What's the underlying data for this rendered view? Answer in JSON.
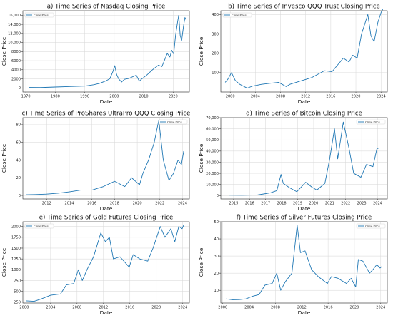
{
  "chart_data": [
    {
      "type": "line",
      "title": "a) Time Series of Nasdaq Closing Price",
      "xlabel": "Date",
      "ylabel": "Close Price",
      "legend": [
        "Close Price"
      ],
      "legend_position": "top-left",
      "grid": true,
      "xlim": [
        1969,
        2025.5
      ],
      "ylim": [
        -900,
        17000
      ],
      "x_ticks": [
        1970,
        1980,
        1990,
        2000,
        2010,
        2020
      ],
      "x_tick_labels": [
        "1970",
        "1980",
        "1990",
        "2000",
        "2010",
        "2020"
      ],
      "y_ticks": [
        0,
        2000,
        4000,
        6000,
        8000,
        10000,
        12000,
        14000,
        16000
      ],
      "y_tick_labels": [
        "0",
        "2000",
        "4000",
        "6000",
        "8000",
        "10,000",
        "12,000",
        "14,000",
        "16,000"
      ],
      "series": [
        {
          "name": "Close Price",
          "color": "#1f77b4",
          "x": [
            1971,
            1975,
            1980,
            1985,
            1990,
            1993,
            1995,
            1997,
            1998.5,
            1999.5,
            2000.2,
            2000.8,
            2001.5,
            2002.5,
            2003.5,
            2005,
            2007.5,
            2008.5,
            2009.2,
            2011,
            2013,
            2015,
            2016.2,
            2018,
            2018.9,
            2019.5,
            2020.2,
            2020.8,
            2021.5,
            2021.9,
            2022.4,
            2022.9,
            2023.5,
            2024,
            2024.4
          ],
          "y": [
            100,
            80,
            200,
            300,
            400,
            700,
            1000,
            1500,
            2000,
            3500,
            4900,
            3000,
            2000,
            1300,
            1900,
            2100,
            2800,
            1500,
            1900,
            2800,
            4000,
            5000,
            4700,
            7600,
            6800,
            8300,
            7500,
            11500,
            14500,
            16000,
            11500,
            10500,
            13500,
            15500,
            15000
          ]
        }
      ]
    },
    {
      "type": "line",
      "title": "b) Time Series of Invesco QQQ Trust  Closing Price",
      "xlabel": "Date",
      "ylabel": "Close Price",
      "legend": [
        "Close Price"
      ],
      "legend_position": "top-left",
      "grid": true,
      "xlim": [
        1998.5,
        2025
      ],
      "ylim": [
        0,
        420
      ],
      "x_ticks": [
        2000,
        2004,
        2008,
        2012,
        2016,
        2020,
        2024
      ],
      "x_tick_labels": [
        "2000",
        "2004",
        "2008",
        "2012",
        "2016",
        "2020",
        "2024"
      ],
      "y_ticks": [
        100,
        200,
        300,
        400
      ],
      "y_tick_labels": [
        "100",
        "200",
        "300",
        "400"
      ],
      "series": [
        {
          "name": "Close Price",
          "color": "#1f77b4",
          "x": [
            1999.2,
            1999.6,
            2000.2,
            2000.8,
            2001.5,
            2002.7,
            2003.5,
            2005,
            2007.7,
            2008.9,
            2009.5,
            2011,
            2013,
            2015,
            2016.2,
            2018,
            2018.9,
            2019.5,
            2020.2,
            2020.9,
            2021.5,
            2021.9,
            2022.4,
            2022.9,
            2023.5,
            2024,
            2024.3
          ],
          "y": [
            50,
            65,
            100,
            60,
            40,
            20,
            30,
            40,
            50,
            28,
            40,
            55,
            75,
            110,
            105,
            175,
            155,
            190,
            175,
            300,
            360,
            400,
            290,
            260,
            360,
            410,
            430
          ]
        }
      ]
    },
    {
      "type": "line",
      "title": "c) Time Series of ProShares UltraPro QQQ Closing Price",
      "xlabel": "Date",
      "ylabel": "Close Price",
      "legend": [
        "Close Price"
      ],
      "legend_position": "top-right",
      "grid": true,
      "xlim": [
        2009.9,
        2024.6
      ],
      "ylim": [
        -4,
        88
      ],
      "x_ticks": [
        2012,
        2014,
        2016,
        2018,
        2020,
        2022,
        2024
      ],
      "x_tick_labels": [
        "2012",
        "2014",
        "2016",
        "2018",
        "2020",
        "2022",
        "2024"
      ],
      "y_ticks": [
        0,
        20,
        40,
        60,
        80
      ],
      "y_tick_labels": [
        "0",
        "20",
        "40",
        "60",
        "80"
      ],
      "series": [
        {
          "name": "Close Price",
          "color": "#1f77b4",
          "x": [
            2010.2,
            2011,
            2012,
            2013,
            2014,
            2015,
            2016,
            2017,
            2018,
            2018.9,
            2019.5,
            2020.2,
            2020.5,
            2021,
            2021.5,
            2021.9,
            2022.3,
            2022.8,
            2023.2,
            2023.6,
            2023.9,
            2024.1
          ],
          "y": [
            0.8,
            1,
            1.5,
            2.5,
            4,
            6,
            6,
            10,
            16,
            10,
            20,
            12,
            25,
            40,
            60,
            85,
            40,
            17,
            25,
            40,
            35,
            50
          ]
        }
      ]
    },
    {
      "type": "line",
      "title": "d) Time Series of Bitcoin Closing Price",
      "xlabel": "Date",
      "ylabel": "Close Price",
      "legend": [
        "Close Price"
      ],
      "legend_position": "top-right",
      "grid": true,
      "xlim": [
        2014.2,
        2024.6
      ],
      "ylim": [
        -3000,
        70000
      ],
      "x_ticks": [
        2015,
        2016,
        2017,
        2018,
        2019,
        2020,
        2021,
        2022,
        2023,
        2024
      ],
      "x_tick_labels": [
        "2015",
        "2016",
        "2017",
        "2018",
        "2019",
        "2020",
        "2021",
        "2022",
        "2023",
        "2024"
      ],
      "y_ticks": [
        0,
        10000,
        20000,
        30000,
        40000,
        50000,
        60000,
        70000
      ],
      "y_tick_labels": [
        "0",
        "10,000",
        "20,000",
        "30,000",
        "40,000",
        "50,000",
        "60,000",
        "70,000"
      ],
      "series": [
        {
          "name": "Close Price",
          "color": "#1f77b4",
          "x": [
            2014.7,
            2015.5,
            2016.5,
            2017.3,
            2017.7,
            2017.96,
            2018.1,
            2018.5,
            2018.95,
            2019.5,
            2019.9,
            2020.2,
            2020.7,
            2021.0,
            2021.3,
            2021.5,
            2021.85,
            2022.2,
            2022.5,
            2022.95,
            2023.3,
            2023.7,
            2023.95,
            2024.1
          ],
          "y": [
            400,
            300,
            600,
            2500,
            4500,
            19000,
            11000,
            7000,
            3500,
            12000,
            7500,
            5000,
            11000,
            33000,
            60000,
            33000,
            66000,
            43000,
            20000,
            16500,
            28000,
            26000,
            42000,
            43000
          ]
        }
      ]
    },
    {
      "type": "line",
      "title": "e) Time Series of Gold Futures Closing Price",
      "xlabel": "Date",
      "ylabel": "Close Price",
      "legend": [
        "Close Price"
      ],
      "legend_position": "top-left",
      "grid": true,
      "xlim": [
        1999.8,
        2025
      ],
      "ylim": [
        230,
        2110
      ],
      "x_ticks": [
        2000,
        2004,
        2008,
        2012,
        2016,
        2020,
        2024
      ],
      "x_tick_labels": [
        "2000",
        "2004",
        "2008",
        "2012",
        "2016",
        "2020",
        "2024"
      ],
      "y_ticks": [
        250,
        500,
        750,
        1000,
        1250,
        1500,
        1750,
        2000
      ],
      "y_tick_labels": [
        "250",
        "500",
        "750",
        "1000",
        "1250",
        "1500",
        "1750",
        "2000"
      ],
      "series": [
        {
          "name": "Close Price",
          "color": "#1f77b4",
          "x": [
            2000.3,
            2001.5,
            2002.5,
            2004,
            2005.5,
            2006.4,
            2007.5,
            2008.2,
            2008.8,
            2009.5,
            2010.5,
            2011.6,
            2012.3,
            2012.9,
            2013.5,
            2014.5,
            2015.9,
            2016.5,
            2017.5,
            2018.7,
            2019.5,
            2020.6,
            2021.3,
            2022.2,
            2022.8,
            2023.4,
            2023.9,
            2024.2
          ],
          "y": [
            280,
            270,
            320,
            410,
            440,
            650,
            680,
            1000,
            750,
            1000,
            1300,
            1850,
            1650,
            1750,
            1250,
            1300,
            1060,
            1350,
            1250,
            1200,
            1500,
            2000,
            1750,
            1950,
            1650,
            2000,
            1950,
            2050
          ]
        }
      ]
    },
    {
      "type": "line",
      "title": "f) Time Series of Silver Futures Closing Price",
      "xlabel": "Date",
      "ylabel": "Close Price",
      "legend": [
        "Close Price"
      ],
      "legend_position": "top-right",
      "grid": true,
      "xlim": [
        1999.7,
        2025
      ],
      "ylim": [
        2.6,
        50
      ],
      "x_ticks": [
        2000,
        2004,
        2008,
        2012,
        2016,
        2020,
        2024
      ],
      "x_tick_labels": [
        "2000",
        "2004",
        "2008",
        "2012",
        "2016",
        "2020",
        "2024"
      ],
      "y_ticks": [
        10,
        20,
        30,
        40,
        50
      ],
      "y_tick_labels": [
        "10",
        "20",
        "30",
        "40",
        "50"
      ],
      "series": [
        {
          "name": "Close Price",
          "color": "#1f77b4",
          "x": [
            2000.5,
            2001.5,
            2002.5,
            2003.5,
            2004.5,
            2005.5,
            2006.4,
            2007.5,
            2008.2,
            2008.8,
            2009.5,
            2010.5,
            2011.3,
            2011.8,
            2012.5,
            2013.5,
            2014.5,
            2015.9,
            2016.5,
            2017.5,
            2018.8,
            2019.5,
            2020.2,
            2020.6,
            2021.3,
            2022.3,
            2022.8,
            2023.4,
            2023.9,
            2024.2
          ],
          "y": [
            5,
            4.5,
            4.6,
            5,
            6.5,
            7.5,
            13,
            14,
            20,
            10,
            15,
            20,
            48,
            32,
            33,
            22,
            18,
            14,
            18,
            17,
            14,
            17,
            12,
            28,
            27,
            20,
            22,
            25,
            23,
            24
          ]
        }
      ]
    }
  ]
}
